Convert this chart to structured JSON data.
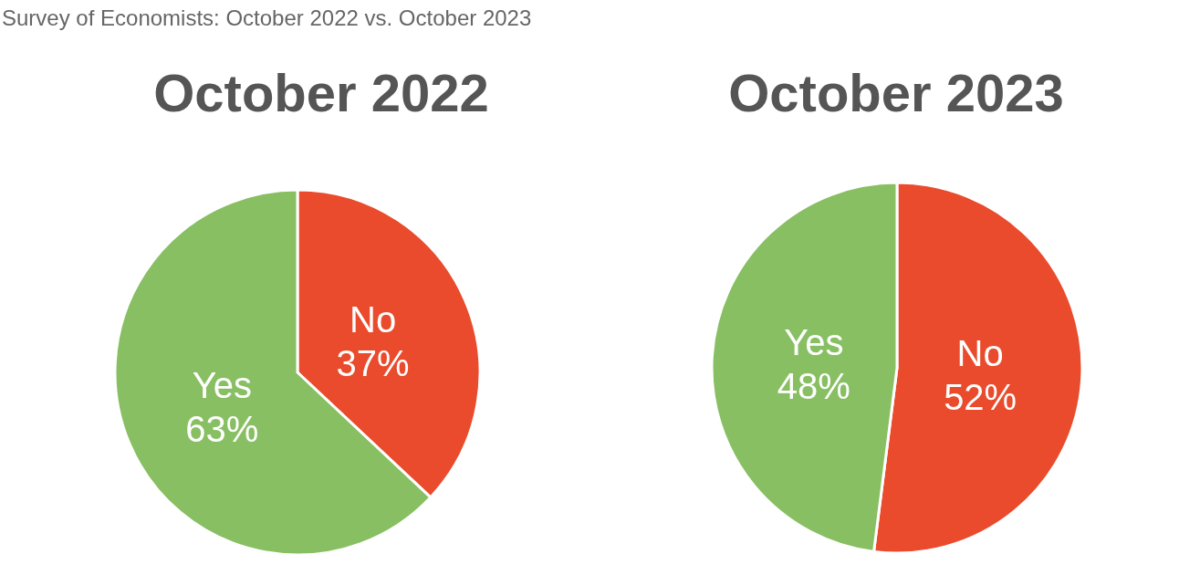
{
  "chart_data": [
    {
      "type": "pie",
      "title": "October 2022",
      "annotations": [
        "Survey of Economists: October 2022 vs. October 2023"
      ],
      "categories": [
        "No",
        "Yes"
      ],
      "values": [
        37,
        63
      ],
      "colors": [
        "#e94b2c",
        "#88bf63"
      ],
      "value_labels": [
        "37%",
        "63%"
      ],
      "legend": false
    },
    {
      "type": "pie",
      "title": "October 2023",
      "categories": [
        "No",
        "Yes"
      ],
      "values": [
        52,
        48
      ],
      "colors": [
        "#e94b2c",
        "#88bf63"
      ],
      "value_labels": [
        "52%",
        "48%"
      ],
      "legend": false
    }
  ]
}
